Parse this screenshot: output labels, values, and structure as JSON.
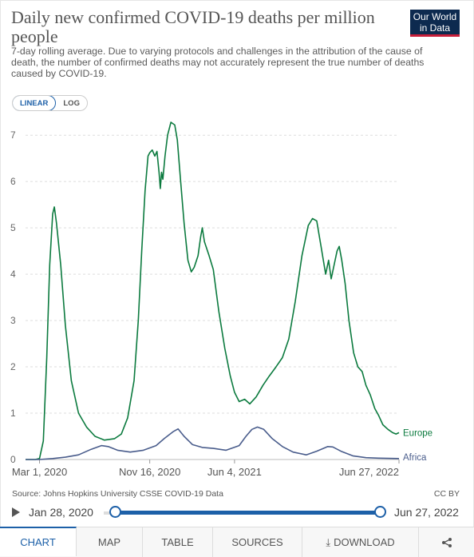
{
  "header": {
    "title": "Daily new confirmed COVID-19 deaths per million people",
    "subtitle": "7-day rolling average. Due to varying protocols and challenges in the attribution of the cause of death, the number of confirmed deaths may not accurately represent the true number of deaths caused by COVID-19.",
    "logo_line1": "Our World",
    "logo_line2": "in Data"
  },
  "controls": {
    "linear_label": "LINEAR",
    "log_label": "LOG",
    "active_scale": "linear"
  },
  "chart_data": {
    "type": "line",
    "title": "Daily new confirmed COVID-19 deaths per million people",
    "subtitle": "7-day rolling average. Due to varying protocols and challenges in the attribution of the cause of death, the number of confirmed deaths may not accurately represent the true number of deaths caused by COVID-19.",
    "xlabel": "",
    "ylabel": "",
    "xlim": [
      "2020-01-28",
      "2022-06-27"
    ],
    "ylim": [
      0,
      7.4
    ],
    "y_ticks": [
      0,
      1,
      2,
      3,
      4,
      5,
      6,
      7
    ],
    "x_ticks": [
      {
        "date": "2020-03-01",
        "label": "Mar 1, 2020"
      },
      {
        "date": "2020-11-16",
        "label": "Nov 16, 2020"
      },
      {
        "date": "2021-06-04",
        "label": "Jun 4, 2021"
      },
      {
        "date": "2022-06-27",
        "label": "Jun 27, 2022"
      }
    ],
    "grid": "horizontal-dashed",
    "legend": "inline-right",
    "series": [
      {
        "name": "Europe",
        "color": "#0b7a3e",
        "points": [
          [
            "2020-01-28",
            0
          ],
          [
            "2020-02-20",
            0
          ],
          [
            "2020-03-01",
            0.02
          ],
          [
            "2020-03-10",
            0.4
          ],
          [
            "2020-03-18",
            2.2
          ],
          [
            "2020-03-25",
            4.2
          ],
          [
            "2020-04-01",
            5.3
          ],
          [
            "2020-04-05",
            5.45
          ],
          [
            "2020-04-10",
            5.1
          ],
          [
            "2020-04-20",
            4.2
          ],
          [
            "2020-05-01",
            2.9
          ],
          [
            "2020-05-15",
            1.7
          ],
          [
            "2020-06-01",
            1.0
          ],
          [
            "2020-06-20",
            0.7
          ],
          [
            "2020-07-10",
            0.5
          ],
          [
            "2020-08-01",
            0.42
          ],
          [
            "2020-08-25",
            0.45
          ],
          [
            "2020-09-10",
            0.55
          ],
          [
            "2020-09-25",
            0.9
          ],
          [
            "2020-10-10",
            1.7
          ],
          [
            "2020-10-20",
            3.0
          ],
          [
            "2020-10-28",
            4.5
          ],
          [
            "2020-11-05",
            5.8
          ],
          [
            "2020-11-12",
            6.55
          ],
          [
            "2020-11-16",
            6.62
          ],
          [
            "2020-11-22",
            6.68
          ],
          [
            "2020-11-28",
            6.55
          ],
          [
            "2020-12-03",
            6.65
          ],
          [
            "2020-12-08",
            6.2
          ],
          [
            "2020-12-11",
            5.85
          ],
          [
            "2020-12-14",
            6.2
          ],
          [
            "2020-12-17",
            6.05
          ],
          [
            "2020-12-22",
            6.55
          ],
          [
            "2020-12-28",
            7.0
          ],
          [
            "2021-01-05",
            7.28
          ],
          [
            "2021-01-14",
            7.22
          ],
          [
            "2021-01-20",
            6.9
          ],
          [
            "2021-01-28",
            6.0
          ],
          [
            "2021-02-05",
            5.1
          ],
          [
            "2021-02-14",
            4.3
          ],
          [
            "2021-02-22",
            4.05
          ],
          [
            "2021-03-01",
            4.15
          ],
          [
            "2021-03-10",
            4.4
          ],
          [
            "2021-03-16",
            4.8
          ],
          [
            "2021-03-20",
            5.0
          ],
          [
            "2021-03-25",
            4.7
          ],
          [
            "2021-04-05",
            4.4
          ],
          [
            "2021-04-15",
            4.1
          ],
          [
            "2021-04-28",
            3.2
          ],
          [
            "2021-05-12",
            2.4
          ],
          [
            "2021-05-25",
            1.8
          ],
          [
            "2021-06-04",
            1.45
          ],
          [
            "2021-06-15",
            1.25
          ],
          [
            "2021-06-28",
            1.3
          ],
          [
            "2021-07-10",
            1.2
          ],
          [
            "2021-07-25",
            1.35
          ],
          [
            "2021-08-10",
            1.6
          ],
          [
            "2021-08-25",
            1.8
          ],
          [
            "2021-09-10",
            2.0
          ],
          [
            "2021-09-25",
            2.2
          ],
          [
            "2021-10-10",
            2.6
          ],
          [
            "2021-10-25",
            3.4
          ],
          [
            "2021-11-10",
            4.4
          ],
          [
            "2021-11-25",
            5.05
          ],
          [
            "2021-12-05",
            5.2
          ],
          [
            "2021-12-15",
            5.15
          ],
          [
            "2021-12-25",
            4.6
          ],
          [
            "2022-01-05",
            4.0
          ],
          [
            "2022-01-12",
            4.3
          ],
          [
            "2022-01-18",
            3.9
          ],
          [
            "2022-01-25",
            4.2
          ],
          [
            "2022-02-01",
            4.5
          ],
          [
            "2022-02-06",
            4.6
          ],
          [
            "2022-02-12",
            4.3
          ],
          [
            "2022-02-20",
            3.8
          ],
          [
            "2022-03-01",
            3.0
          ],
          [
            "2022-03-12",
            2.3
          ],
          [
            "2022-03-22",
            2.0
          ],
          [
            "2022-04-01",
            1.9
          ],
          [
            "2022-04-10",
            1.6
          ],
          [
            "2022-04-20",
            1.4
          ],
          [
            "2022-05-01",
            1.1
          ],
          [
            "2022-05-10",
            0.95
          ],
          [
            "2022-05-20",
            0.75
          ],
          [
            "2022-06-01",
            0.65
          ],
          [
            "2022-06-12",
            0.58
          ],
          [
            "2022-06-20",
            0.55
          ],
          [
            "2022-06-27",
            0.58
          ]
        ]
      },
      {
        "name": "Africa",
        "color": "#4a5d8c",
        "points": [
          [
            "2020-01-28",
            0
          ],
          [
            "2020-03-01",
            0
          ],
          [
            "2020-04-01",
            0.02
          ],
          [
            "2020-05-01",
            0.05
          ],
          [
            "2020-06-01",
            0.1
          ],
          [
            "2020-07-01",
            0.22
          ],
          [
            "2020-07-25",
            0.3
          ],
          [
            "2020-08-10",
            0.28
          ],
          [
            "2020-09-01",
            0.2
          ],
          [
            "2020-10-01",
            0.16
          ],
          [
            "2020-11-01",
            0.2
          ],
          [
            "2020-12-01",
            0.3
          ],
          [
            "2020-12-20",
            0.45
          ],
          [
            "2021-01-10",
            0.6
          ],
          [
            "2021-01-22",
            0.66
          ],
          [
            "2021-02-05",
            0.5
          ],
          [
            "2021-02-25",
            0.32
          ],
          [
            "2021-03-20",
            0.26
          ],
          [
            "2021-04-15",
            0.24
          ],
          [
            "2021-05-15",
            0.2
          ],
          [
            "2021-06-15",
            0.3
          ],
          [
            "2021-07-01",
            0.5
          ],
          [
            "2021-07-15",
            0.65
          ],
          [
            "2021-07-28",
            0.7
          ],
          [
            "2021-08-12",
            0.65
          ],
          [
            "2021-09-01",
            0.45
          ],
          [
            "2021-09-25",
            0.28
          ],
          [
            "2021-10-20",
            0.16
          ],
          [
            "2021-11-20",
            0.1
          ],
          [
            "2021-12-15",
            0.18
          ],
          [
            "2022-01-10",
            0.28
          ],
          [
            "2022-01-22",
            0.27
          ],
          [
            "2022-02-10",
            0.18
          ],
          [
            "2022-03-10",
            0.08
          ],
          [
            "2022-04-10",
            0.04
          ],
          [
            "2022-05-10",
            0.03
          ],
          [
            "2022-06-27",
            0.02
          ]
        ]
      }
    ]
  },
  "footer": {
    "source": "Source: Johns Hopkins University CSSE COVID-19 Data",
    "license": "CC BY"
  },
  "timeline": {
    "start_label": "Jan 28, 2020",
    "end_label": "Jun 27, 2022"
  },
  "tabs": [
    {
      "label": "CHART",
      "active": true
    },
    {
      "label": "MAP",
      "active": false
    },
    {
      "label": "TABLE",
      "active": false
    },
    {
      "label": "SOURCES",
      "active": false
    },
    {
      "label": "DOWNLOAD",
      "active": false
    }
  ],
  "icons": {
    "play": "play-icon",
    "download": "download-icon",
    "share": "share-icon"
  },
  "colors": {
    "accent": "#1d60a8",
    "europe": "#0b7a3e",
    "africa": "#4a5d8c"
  }
}
